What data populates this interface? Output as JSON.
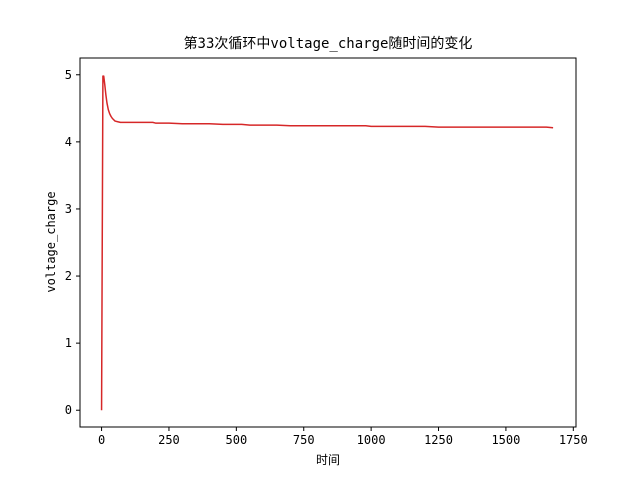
{
  "chart_data": {
    "type": "line",
    "title": "第33次循环中voltage_charge随时间的变化",
    "xlabel": "时间",
    "ylabel": "voltage_charge",
    "xlim": [
      -80,
      1760
    ],
    "ylim": [
      -0.25,
      5.25
    ],
    "xticks": [
      0,
      250,
      500,
      750,
      1000,
      1250,
      1500,
      1750
    ],
    "yticks": [
      0,
      1,
      2,
      3,
      4,
      5
    ],
    "grid": false,
    "legend": "none",
    "series": [
      {
        "color": "#d62728",
        "x": [
          0,
          5,
          8,
          12,
          16,
          20,
          25,
          30,
          35,
          40,
          45,
          50,
          60,
          70,
          80,
          100,
          150,
          190,
          200,
          250,
          300,
          350,
          400,
          450,
          500,
          520,
          550,
          600,
          650,
          700,
          750,
          800,
          850,
          900,
          950,
          980,
          1000,
          1050,
          1100,
          1150,
          1200,
          1250,
          1300,
          1350,
          1400,
          1450,
          1500,
          1550,
          1600,
          1650,
          1675
        ],
        "y": [
          0.0,
          4.98,
          4.98,
          4.85,
          4.7,
          4.58,
          4.48,
          4.42,
          4.38,
          4.35,
          4.33,
          4.31,
          4.3,
          4.29,
          4.29,
          4.29,
          4.29,
          4.29,
          4.28,
          4.28,
          4.27,
          4.27,
          4.27,
          4.26,
          4.26,
          4.26,
          4.25,
          4.25,
          4.25,
          4.24,
          4.24,
          4.24,
          4.24,
          4.24,
          4.24,
          4.24,
          4.23,
          4.23,
          4.23,
          4.23,
          4.23,
          4.22,
          4.22,
          4.22,
          4.22,
          4.22,
          4.22,
          4.22,
          4.22,
          4.22,
          4.21
        ]
      }
    ]
  }
}
